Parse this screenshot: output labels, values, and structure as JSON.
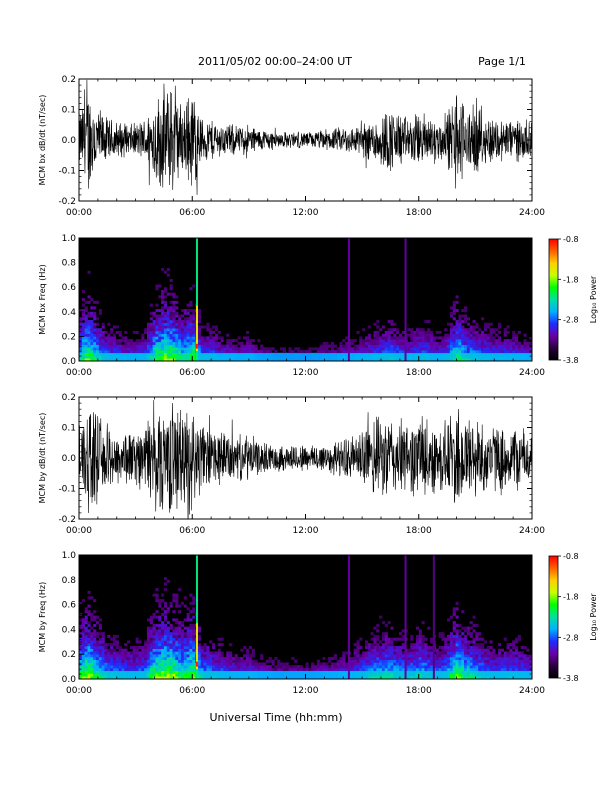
{
  "header": {
    "title": "2011/05/02  00:00–24:00 UT",
    "page": "Page 1/1"
  },
  "xaxis": {
    "label": "Universal Time (hh:mm)",
    "ticks": [
      "00:00",
      "06:00",
      "12:00",
      "18:00",
      "24:00"
    ],
    "range_hours": [
      0,
      24
    ]
  },
  "colorbar": {
    "label": "Log₁₀ Power",
    "ticks": [
      "-0.8",
      "-1.8",
      "-2.8",
      "-3.8"
    ],
    "range": [
      -3.8,
      -0.8
    ],
    "colors": [
      "#000000",
      "#2a003f",
      "#6a00a8",
      "#1e2cff",
      "#00b0ff",
      "#00e0a0",
      "#00ff00",
      "#c8ff00",
      "#ffd000",
      "#ff6000",
      "#ff0000"
    ]
  },
  "chart_data": [
    {
      "type": "line",
      "id": "bx_time",
      "ylabel": "MCM bx dB/dt (nT/sec)",
      "ylim": [
        -0.2,
        0.2
      ],
      "yticks": [
        "0.2",
        "0.1",
        "0.0",
        "-0.1",
        "-0.2"
      ],
      "xlim": [
        0,
        24
      ],
      "envelope_hours": [
        0,
        0.5,
        1,
        1.5,
        2,
        2.5,
        3,
        3.5,
        4,
        4.5,
        5,
        5.5,
        6,
        6.5,
        7,
        7.5,
        8,
        8.5,
        9,
        9.5,
        10,
        10.5,
        11,
        11.5,
        12,
        12.5,
        13,
        13.5,
        14,
        14.5,
        15,
        15.5,
        16,
        16.5,
        17,
        17.5,
        18,
        18.5,
        19,
        19.5,
        20,
        20.5,
        21,
        21.5,
        22,
        22.5,
        23,
        23.5,
        24
      ],
      "envelope_amplitude": [
        0.1,
        0.2,
        0.12,
        0.08,
        0.07,
        0.06,
        0.06,
        0.08,
        0.15,
        0.2,
        0.2,
        0.12,
        0.2,
        0.08,
        0.08,
        0.06,
        0.06,
        0.05,
        0.06,
        0.04,
        0.04,
        0.03,
        0.03,
        0.03,
        0.03,
        0.03,
        0.04,
        0.04,
        0.05,
        0.05,
        0.06,
        0.08,
        0.1,
        0.12,
        0.1,
        0.08,
        0.1,
        0.1,
        0.07,
        0.1,
        0.2,
        0.12,
        0.12,
        0.1,
        0.08,
        0.08,
        0.08,
        0.07,
        0.06
      ]
    },
    {
      "type": "heatmap",
      "id": "bx_freq",
      "ylabel": "MCM bx Freq (Hz)",
      "ylim": [
        0.0,
        1.0
      ],
      "yticks": [
        "1.0",
        "0.8",
        "0.6",
        "0.4",
        "0.2",
        "0.0"
      ],
      "xlim": [
        0,
        24
      ],
      "activity_hours": [
        0,
        0.5,
        1,
        1.5,
        2,
        2.5,
        3,
        3.5,
        4,
        4.5,
        5,
        5.5,
        6,
        6.5,
        7,
        7.5,
        8,
        8.5,
        9,
        9.5,
        10,
        10.5,
        11,
        11.5,
        12,
        12.5,
        13,
        13.5,
        14,
        14.5,
        15,
        15.5,
        16,
        16.5,
        17,
        17.5,
        18,
        18.5,
        19,
        19.5,
        20,
        20.5,
        21,
        21.5,
        22,
        22.5,
        23,
        23.5,
        24
      ],
      "activity_level": [
        0.7,
        0.9,
        0.7,
        0.55,
        0.5,
        0.45,
        0.45,
        0.5,
        0.8,
        0.9,
        0.9,
        0.7,
        0.9,
        0.55,
        0.55,
        0.45,
        0.45,
        0.4,
        0.45,
        0.35,
        0.35,
        0.3,
        0.3,
        0.3,
        0.3,
        0.3,
        0.35,
        0.35,
        0.4,
        0.4,
        0.45,
        0.5,
        0.55,
        0.6,
        0.55,
        0.5,
        0.55,
        0.55,
        0.45,
        0.55,
        0.8,
        0.65,
        0.6,
        0.55,
        0.5,
        0.5,
        0.5,
        0.45,
        0.4
      ],
      "vertical_lines_hours": [
        6.25,
        14.3,
        17.3
      ],
      "vertical_line_levels": [
        0.95,
        0.35,
        0.35
      ]
    },
    {
      "type": "line",
      "id": "by_time",
      "ylabel": "MCM by dB/dt (nT/sec)",
      "ylim": [
        -0.2,
        0.2
      ],
      "yticks": [
        "0.2",
        "0.1",
        "0.0",
        "-0.1",
        "-0.2"
      ],
      "xlim": [
        0,
        24
      ],
      "envelope_hours": [
        0,
        0.5,
        1,
        1.5,
        2,
        2.5,
        3,
        3.5,
        4,
        4.5,
        5,
        5.5,
        6,
        6.5,
        7,
        7.5,
        8,
        8.5,
        9,
        9.5,
        10,
        10.5,
        11,
        11.5,
        12,
        12.5,
        13,
        13.5,
        14,
        14.5,
        15,
        15.5,
        16,
        16.5,
        17,
        17.5,
        18,
        18.5,
        19,
        19.5,
        20,
        20.5,
        21,
        21.5,
        22,
        22.5,
        23,
        23.5,
        24
      ],
      "envelope_amplitude": [
        0.14,
        0.2,
        0.15,
        0.12,
        0.1,
        0.1,
        0.1,
        0.12,
        0.2,
        0.2,
        0.2,
        0.18,
        0.2,
        0.12,
        0.11,
        0.1,
        0.09,
        0.08,
        0.09,
        0.06,
        0.05,
        0.05,
        0.05,
        0.05,
        0.05,
        0.05,
        0.06,
        0.06,
        0.07,
        0.08,
        0.1,
        0.14,
        0.15,
        0.15,
        0.14,
        0.12,
        0.16,
        0.14,
        0.12,
        0.14,
        0.2,
        0.16,
        0.15,
        0.13,
        0.12,
        0.11,
        0.12,
        0.11,
        0.1
      ]
    },
    {
      "type": "heatmap",
      "id": "by_freq",
      "ylabel": "MCM by Freq (Hz)",
      "ylim": [
        0.0,
        1.0
      ],
      "yticks": [
        "1.0",
        "0.8",
        "0.6",
        "0.4",
        "0.2",
        "0.0"
      ],
      "xlim": [
        0,
        24
      ],
      "activity_hours": [
        0,
        0.5,
        1,
        1.5,
        2,
        2.5,
        3,
        3.5,
        4,
        4.5,
        5,
        5.5,
        6,
        6.5,
        7,
        7.5,
        8,
        8.5,
        9,
        9.5,
        10,
        10.5,
        11,
        11.5,
        12,
        12.5,
        13,
        13.5,
        14,
        14.5,
        15,
        15.5,
        16,
        16.5,
        17,
        17.5,
        18,
        18.5,
        19,
        19.5,
        20,
        20.5,
        21,
        21.5,
        22,
        22.5,
        23,
        23.5,
        24
      ],
      "activity_level": [
        0.8,
        0.95,
        0.8,
        0.65,
        0.6,
        0.55,
        0.55,
        0.6,
        0.9,
        0.95,
        0.95,
        0.8,
        0.95,
        0.65,
        0.6,
        0.55,
        0.5,
        0.45,
        0.5,
        0.4,
        0.4,
        0.35,
        0.35,
        0.35,
        0.35,
        0.35,
        0.4,
        0.4,
        0.45,
        0.5,
        0.55,
        0.65,
        0.7,
        0.7,
        0.65,
        0.6,
        0.7,
        0.65,
        0.55,
        0.65,
        0.9,
        0.75,
        0.7,
        0.6,
        0.55,
        0.55,
        0.6,
        0.55,
        0.5
      ],
      "vertical_lines_hours": [
        6.25,
        14.3,
        17.3,
        18.8
      ],
      "vertical_line_levels": [
        0.95,
        0.35,
        0.35,
        0.3
      ]
    }
  ]
}
